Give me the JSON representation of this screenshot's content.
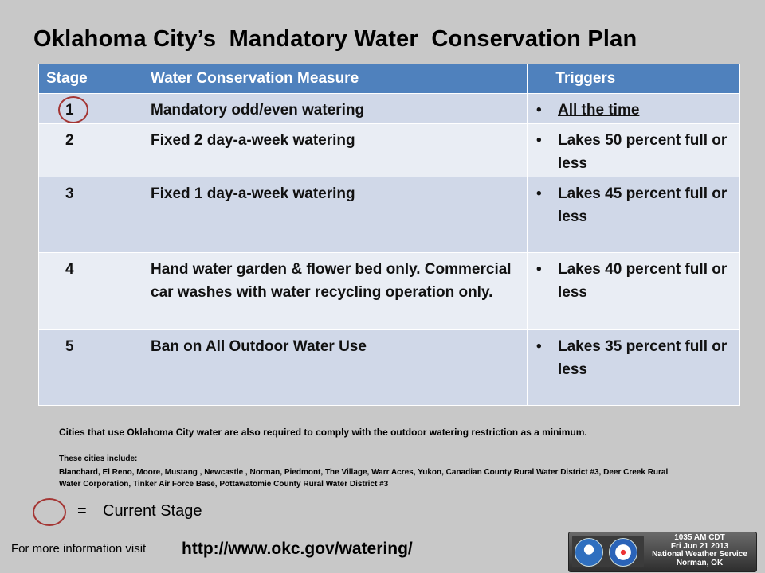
{
  "title": "Oklahoma City’s  Mandatory Water  Conservation Plan",
  "table": {
    "headers": [
      "Stage",
      "Water Conservation Measure",
      "     Triggers"
    ],
    "rows": [
      {
        "stage": "1",
        "measure": "Mandatory odd/even watering",
        "trigger": "All the time",
        "current": true
      },
      {
        "stage": "2",
        "measure": "Fixed 2 day-a-week watering",
        "trigger": "Lakes 50 percent full or less"
      },
      {
        "stage": "3",
        "measure": "Fixed 1 day-a-week watering",
        "trigger": "Lakes 45 percent full or less"
      },
      {
        "stage": "4",
        "measure": "Hand water garden & flower bed only. Commercial car washes with water recycling operation only.",
        "trigger": "Lakes 40 percent full or less"
      },
      {
        "stage": "5",
        "measure": "Ban on All Outdoor Water Use",
        "trigger": "Lakes 35 percent full or less"
      }
    ],
    "bullet": "•"
  },
  "note": "Cities that use Oklahoma City water are also required to comply with the outdoor watering restriction as a minimum.",
  "cities_heading": "These cities include:",
  "cities_list": "Blanchard,  El Reno, Moore, Mustang , Newcastle , Norman, Piedmont, The Village,  Warr Acres, Yukon,  Canadian  County Rural  Water District #3, Deer Creek Rural Water Corporation, Tinker Air Force Base, Pottawatomie County Rural Water District #3",
  "legend": {
    "equals": "=",
    "label": "Current Stage"
  },
  "info": {
    "label": "For more information visit",
    "url": "http://www.okc.gov/watering/"
  },
  "badge": {
    "time": "1035 AM CDT",
    "date": "Fri Jun 21 2013",
    "office": "National Weather Service",
    "location": "Norman, OK"
  },
  "colors": {
    "header": "#4f81bd",
    "row_alt": "#d0d8e8",
    "row_light": "#e9edf4",
    "ring": "#a43533",
    "background": "#c8c8c8"
  }
}
